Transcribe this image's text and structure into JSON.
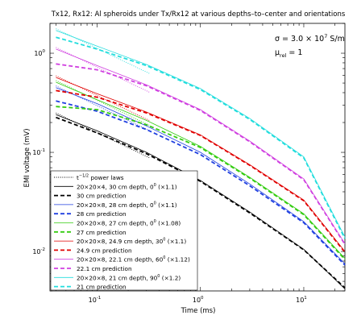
{
  "chart_data": {
    "type": "line",
    "title": "Tx12, Rx12: Al spheroids under Tx/Rx12 at various depths–to–center and orientations",
    "xlabel": "Time (ms)",
    "ylabel": "EMI voltage (mV)",
    "x_scale": "log",
    "y_scale": "log",
    "xlim": [
      0.035,
      25
    ],
    "ylim": [
      0.004,
      2.0
    ],
    "x_ticks": [
      {
        "value": 0.1,
        "base": "10",
        "exp": "-1"
      },
      {
        "value": 1,
        "base": "10",
        "exp": "0"
      },
      {
        "value": 10,
        "base": "10",
        "exp": "1"
      }
    ],
    "y_ticks": [
      {
        "value": 0.01,
        "base": "10",
        "exp": "-2"
      },
      {
        "value": 0.1,
        "base": "10",
        "exp": "-1"
      },
      {
        "value": 1,
        "base": "10",
        "exp": "0"
      }
    ],
    "annotations": {
      "sigma_symbol": "σ = 3.0 × 10",
      "sigma_exp": "7",
      "sigma_unit": " S/m",
      "mu_symbol": "μ",
      "mu_sub": "rel",
      "mu_value": " = 1"
    },
    "legend": {
      "placement": "bottom-left",
      "entries": [
        {
          "type": "powerlaw",
          "label": "t",
          "sup": "−1/2",
          "label2": " power laws"
        },
        {
          "series": 0,
          "type": "data",
          "label": "20×20×4, 30 cm depth, 0",
          "sup": "0",
          "label2": " (×1.1)"
        },
        {
          "series": 0,
          "type": "prediction",
          "label": "30 cm prediction"
        },
        {
          "series": 1,
          "type": "data",
          "label": "20×20×8, 28 cm depth, 0",
          "sup": "0",
          "label2": " (×1.1)"
        },
        {
          "series": 1,
          "type": "prediction",
          "label": "28 cm prediction"
        },
        {
          "series": 2,
          "type": "data",
          "label": "20×20×8, 27 cm depth, 0",
          "sup": "0",
          "label2": " (×1.08)"
        },
        {
          "series": 2,
          "type": "prediction",
          "label": "27 cm prediction"
        },
        {
          "series": 3,
          "type": "data",
          "label": "20×20×8, 24.9 cm depth, 30",
          "sup": "0",
          "label2": " (×1.1)"
        },
        {
          "series": 3,
          "type": "prediction",
          "label": "24.9 cm prediction"
        },
        {
          "series": 4,
          "type": "data",
          "label": "20×20×8, 22.1 cm depth, 60",
          "sup": "0",
          "label2": " (×1.12)"
        },
        {
          "series": 4,
          "type": "prediction",
          "label": "22.1 cm prediction"
        },
        {
          "series": 5,
          "type": "data",
          "label": "20×20×8, 21 cm depth, 90",
          "sup": "0",
          "label2": " (×1.2)"
        },
        {
          "series": 5,
          "type": "prediction",
          "label": "21 cm prediction"
        }
      ]
    },
    "series": [
      {
        "color": "#000000",
        "x": [
          0.04,
          0.1,
          0.3,
          1,
          3,
          10,
          25
        ],
        "data": [
          0.24,
          0.165,
          0.1,
          0.052,
          0.025,
          0.0105,
          0.0042
        ],
        "prediction": [
          0.225,
          0.157,
          0.097,
          0.051,
          0.0245,
          0.0104,
          0.0043
        ]
      },
      {
        "color": "#1f3fe0",
        "x": [
          0.04,
          0.1,
          0.3,
          1,
          3,
          10,
          25
        ],
        "data": [
          0.45,
          0.31,
          0.185,
          0.1,
          0.048,
          0.02,
          0.0075
        ],
        "prediction": [
          0.33,
          0.26,
          0.17,
          0.095,
          0.046,
          0.0195,
          0.0073
        ]
      },
      {
        "color": "#33cc11",
        "x": [
          0.04,
          0.1,
          0.3,
          1,
          3,
          10,
          25
        ],
        "data": [
          0.51,
          0.34,
          0.21,
          0.115,
          0.056,
          0.024,
          0.0085
        ],
        "prediction": [
          0.29,
          0.27,
          0.19,
          0.112,
          0.055,
          0.0235,
          0.0083
        ]
      },
      {
        "color": "#e00000",
        "x": [
          0.04,
          0.1,
          0.3,
          1,
          3,
          10,
          25
        ],
        "data": [
          0.57,
          0.39,
          0.255,
          0.15,
          0.075,
          0.033,
          0.01
        ],
        "prediction": [
          0.42,
          0.36,
          0.25,
          0.148,
          0.074,
          0.0325,
          0.0098
        ]
      },
      {
        "color": "#d040e0",
        "x": [
          0.04,
          0.1,
          0.3,
          1,
          3,
          10,
          25
        ],
        "data": [
          1.1,
          0.75,
          0.48,
          0.27,
          0.13,
          0.054,
          0.012
        ],
        "prediction": [
          0.78,
          0.68,
          0.47,
          0.265,
          0.128,
          0.053,
          0.0118
        ]
      },
      {
        "color": "#22dddd",
        "x": [
          0.04,
          0.1,
          0.3,
          1,
          3,
          10,
          25
        ],
        "data": [
          1.7,
          1.18,
          0.77,
          0.44,
          0.22,
          0.09,
          0.014
        ],
        "prediction": [
          1.45,
          1.1,
          0.75,
          0.43,
          0.215,
          0.088,
          0.0135
        ]
      }
    ]
  }
}
